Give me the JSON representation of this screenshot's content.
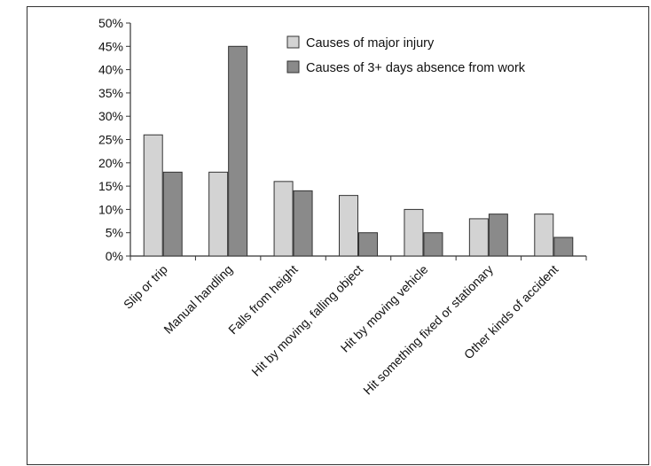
{
  "chart_data": {
    "type": "bar",
    "categories": [
      "Slip or trip",
      "Manual handling",
      "Falls from height",
      "Hit by moving, falling object",
      "Hit by moving vehicle",
      "Hit something fixed or stationary",
      "Other kinds of accident"
    ],
    "series": [
      {
        "name": "Causes of major injury",
        "values": [
          26,
          18,
          16,
          13,
          10,
          8,
          9
        ],
        "color": "#d3d3d3"
      },
      {
        "name": "Causes of 3+ days absence from work",
        "values": [
          18,
          45,
          14,
          5,
          5,
          9,
          4
        ],
        "color": "#8a8a8a"
      }
    ],
    "ylim": [
      0,
      50
    ],
    "yticks": [
      "0%",
      "5%",
      "10%",
      "15%",
      "20%",
      "25%",
      "30%",
      "35%",
      "40%",
      "45%",
      "50%"
    ],
    "xlabel": "",
    "ylabel": "",
    "grid": false,
    "legend": "top-right",
    "bar_edge_color": "#333333"
  }
}
